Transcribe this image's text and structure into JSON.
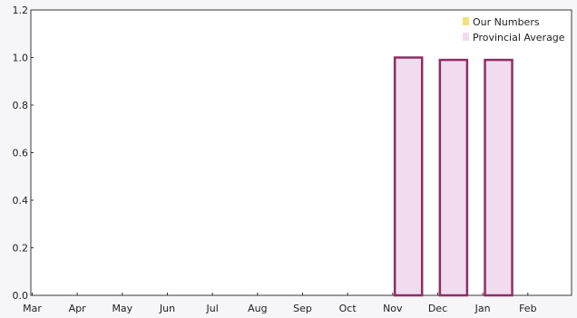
{
  "chart_data": {
    "type": "bar",
    "title": "",
    "xlabel": "",
    "ylabel": "",
    "categories": [
      "Mar",
      "Apr",
      "May",
      "Jun",
      "Jul",
      "Aug",
      "Sep",
      "Oct",
      "Nov",
      "Dec",
      "Jan",
      "Feb"
    ],
    "series": [
      {
        "name": "Our Numbers",
        "color": "#f2e27a",
        "values": [
          0,
          0,
          0,
          0,
          0,
          0,
          0,
          0,
          0,
          0,
          0,
          0
        ]
      },
      {
        "name": "Provincial Average",
        "color": "#f1dcef",
        "stroke": "#8e2f63",
        "values": [
          0,
          0,
          0,
          0,
          0,
          0,
          0,
          0,
          1.0,
          0.99,
          0.99,
          0
        ]
      }
    ],
    "ylim": [
      0,
      1.2
    ],
    "yticks": [
      "0.0",
      "0.2",
      "0.4",
      "0.6",
      "0.8",
      "1.0",
      "1.2"
    ],
    "grid": false,
    "legend_position": "top-right"
  }
}
